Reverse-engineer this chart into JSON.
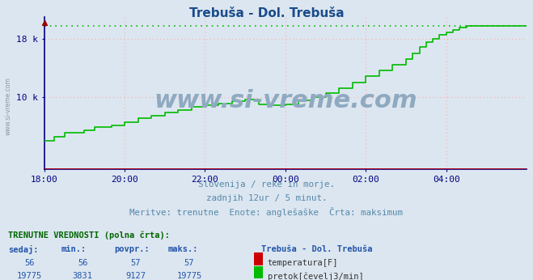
{
  "title": "Trebuša - Dol. Trebuša",
  "title_color": "#1a4c8b",
  "bg_color": "#dce6f0",
  "plot_bg_color": "#dce6f0",
  "grid_color": "#ffaaaa",
  "watermark": "www.si-vreme.com",
  "watermark_color": "#8faac0",
  "subtitle_lines": [
    "Slovenija / reke in morje.",
    "zadnjih 12ur / 5 minut.",
    "Meritve: trenutne  Enote: anglešaške  Črta: maksimum"
  ],
  "subtitle_color": "#5588aa",
  "axis_color": "#000080",
  "tick_color": "#2255aa",
  "xtick_labels": [
    "18:00",
    "20:00",
    "22:00",
    "00:00",
    "02:00",
    "04:00"
  ],
  "xtick_positions": [
    0,
    24,
    48,
    72,
    96,
    120
  ],
  "ytick_labels": [
    "10 k",
    "18 k"
  ],
  "ytick_values": [
    10000,
    18000
  ],
  "ymax": 21000,
  "ymin": 0,
  "xmin": 0,
  "xmax": 144,
  "flow_color": "#00bb00",
  "temp_color": "#cc0000",
  "max_flow": 19775,
  "min_flow": 3831,
  "avg_flow": 9127,
  "cur_flow": 19775,
  "cur_temp": 56,
  "min_temp": 56,
  "avg_temp": 57,
  "max_temp": 57,
  "legend_label1": "temperatura[F]",
  "legend_label2": "pretok[čevelj3/min]",
  "legend_color1": "#cc0000",
  "legend_color2": "#00bb00",
  "table_header": "TRENUTNE VREDNOSTI (polna črta):",
  "table_cols": [
    "sedaj:",
    "min.:",
    "povpr.:",
    "maks.:"
  ],
  "station_label": "Trebuša - Dol. Trebuša",
  "flow_data": [
    [
      0,
      3900
    ],
    [
      3,
      3900
    ],
    [
      3,
      4500
    ],
    [
      6,
      4500
    ],
    [
      6,
      5000
    ],
    [
      12,
      5000
    ],
    [
      12,
      5400
    ],
    [
      15,
      5400
    ],
    [
      15,
      5800
    ],
    [
      20,
      5800
    ],
    [
      20,
      6100
    ],
    [
      24,
      6100
    ],
    [
      24,
      6500
    ],
    [
      28,
      6500
    ],
    [
      28,
      7000
    ],
    [
      32,
      7000
    ],
    [
      32,
      7400
    ],
    [
      36,
      7400
    ],
    [
      36,
      7800
    ],
    [
      40,
      7800
    ],
    [
      40,
      8200
    ],
    [
      44,
      8200
    ],
    [
      44,
      8600
    ],
    [
      48,
      8600
    ],
    [
      48,
      8800
    ],
    [
      52,
      8800
    ],
    [
      52,
      9100
    ],
    [
      56,
      9100
    ],
    [
      56,
      9400
    ],
    [
      60,
      9400
    ],
    [
      60,
      9600
    ],
    [
      64,
      9600
    ],
    [
      64,
      8900
    ],
    [
      68,
      8900
    ],
    [
      68,
      8800
    ],
    [
      72,
      8800
    ],
    [
      72,
      9000
    ],
    [
      76,
      9000
    ],
    [
      76,
      9500
    ],
    [
      80,
      9500
    ],
    [
      80,
      10000
    ],
    [
      84,
      10000
    ],
    [
      84,
      10500
    ],
    [
      88,
      10500
    ],
    [
      88,
      11200
    ],
    [
      92,
      11200
    ],
    [
      92,
      12000
    ],
    [
      96,
      12000
    ],
    [
      96,
      12800
    ],
    [
      100,
      12800
    ],
    [
      100,
      13600
    ],
    [
      104,
      13600
    ],
    [
      104,
      14400
    ],
    [
      108,
      14400
    ],
    [
      108,
      15200
    ],
    [
      110,
      15200
    ],
    [
      110,
      16000
    ],
    [
      112,
      16000
    ],
    [
      112,
      16800
    ],
    [
      114,
      16800
    ],
    [
      114,
      17500
    ],
    [
      116,
      17500
    ],
    [
      116,
      18000
    ],
    [
      118,
      18000
    ],
    [
      118,
      18500
    ],
    [
      120,
      18500
    ],
    [
      120,
      18900
    ],
    [
      122,
      18900
    ],
    [
      122,
      19200
    ],
    [
      124,
      19200
    ],
    [
      124,
      19500
    ],
    [
      126,
      19500
    ],
    [
      126,
      19775
    ],
    [
      144,
      19775
    ]
  ],
  "left_watermark": "www.si-vreme.com"
}
